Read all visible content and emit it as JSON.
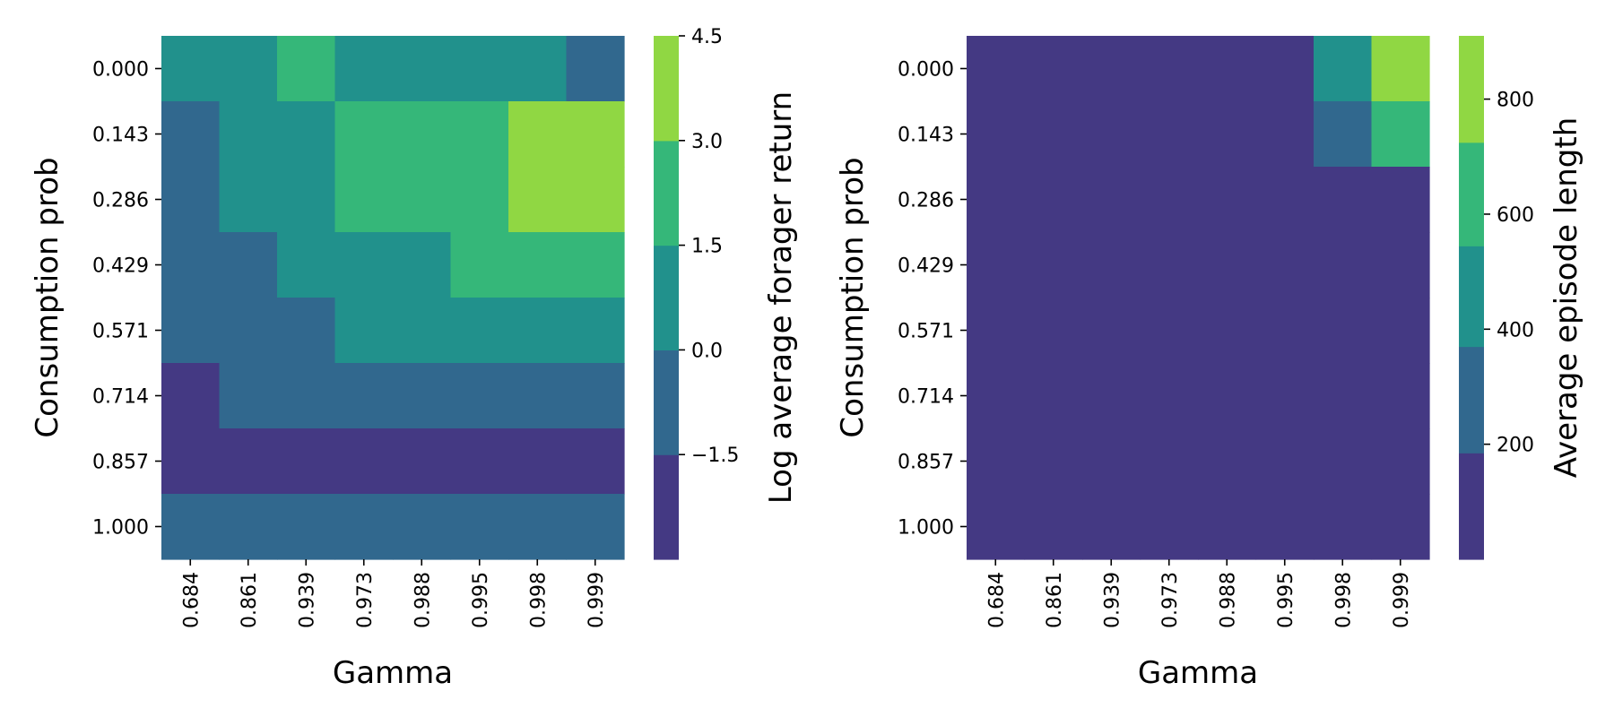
{
  "chart_data": [
    {
      "type": "heatmap",
      "xlabel": "Gamma",
      "ylabel": "Consumption prob",
      "x_categories": [
        "0.684",
        "0.861",
        "0.939",
        "0.973",
        "0.988",
        "0.995",
        "0.998",
        "0.999"
      ],
      "y_categories": [
        "0.000",
        "0.143",
        "0.286",
        "0.429",
        "0.571",
        "0.714",
        "0.857",
        "1.000"
      ],
      "values": [
        [
          0.75,
          0.75,
          2.25,
          0.75,
          0.75,
          0.75,
          0.75,
          -0.75
        ],
        [
          -0.75,
          0.75,
          0.75,
          2.25,
          2.25,
          2.25,
          3.75,
          3.75
        ],
        [
          -0.75,
          0.75,
          0.75,
          2.25,
          2.25,
          2.25,
          3.75,
          3.75
        ],
        [
          -0.75,
          -0.75,
          0.75,
          0.75,
          0.75,
          2.25,
          2.25,
          2.25
        ],
        [
          -0.75,
          -0.75,
          -0.75,
          0.75,
          0.75,
          0.75,
          0.75,
          0.75
        ],
        [
          -2.25,
          -0.75,
          -0.75,
          -0.75,
          -0.75,
          -0.75,
          -0.75,
          -0.75
        ],
        [
          -2.25,
          -2.25,
          -2.25,
          -2.25,
          -2.25,
          -2.25,
          -2.25,
          -2.25
        ],
        [
          -0.75,
          -0.75,
          -0.75,
          -0.75,
          -0.75,
          -0.75,
          -0.75,
          -0.75
        ]
      ],
      "colorbar": {
        "label": "Log average forager return",
        "bin_edges": [
          -3.0,
          -1.5,
          0.0,
          1.5,
          3.0,
          4.5
        ],
        "ticks": [
          -1.5,
          0.0,
          1.5,
          3.0,
          4.5
        ],
        "tick_labels": [
          "−1.5",
          "0.0",
          "1.5",
          "3.0",
          "4.5"
        ],
        "colors": [
          "#443983",
          "#31688e",
          "#21918c",
          "#35b779",
          "#90d743"
        ]
      }
    },
    {
      "type": "heatmap",
      "xlabel": "Gamma",
      "ylabel": "Consumption prob",
      "x_categories": [
        "0.684",
        "0.861",
        "0.939",
        "0.973",
        "0.988",
        "0.995",
        "0.998",
        "0.999"
      ],
      "y_categories": [
        "0.000",
        "0.143",
        "0.286",
        "0.429",
        "0.571",
        "0.714",
        "0.857",
        "1.000"
      ],
      "values": [
        [
          90,
          90,
          90,
          90,
          90,
          90,
          460,
          820
        ],
        [
          90,
          90,
          90,
          90,
          90,
          90,
          280,
          640
        ],
        [
          90,
          90,
          90,
          90,
          90,
          90,
          90,
          90
        ],
        [
          90,
          90,
          90,
          90,
          90,
          90,
          90,
          90
        ],
        [
          90,
          90,
          90,
          90,
          90,
          90,
          90,
          90
        ],
        [
          90,
          90,
          90,
          90,
          90,
          90,
          90,
          90
        ],
        [
          90,
          90,
          90,
          90,
          90,
          90,
          90,
          90
        ],
        [
          90,
          90,
          90,
          90,
          90,
          90,
          90,
          90
        ]
      ],
      "colorbar": {
        "label": "Average episode length",
        "bin_edges": [
          0,
          185,
          370,
          545,
          725,
          910
        ],
        "ticks": [
          200,
          400,
          600,
          800
        ],
        "tick_labels": [
          "200",
          "400",
          "600",
          "800"
        ],
        "colors": [
          "#443983",
          "#31688e",
          "#21918c",
          "#35b779",
          "#90d743"
        ]
      }
    }
  ]
}
